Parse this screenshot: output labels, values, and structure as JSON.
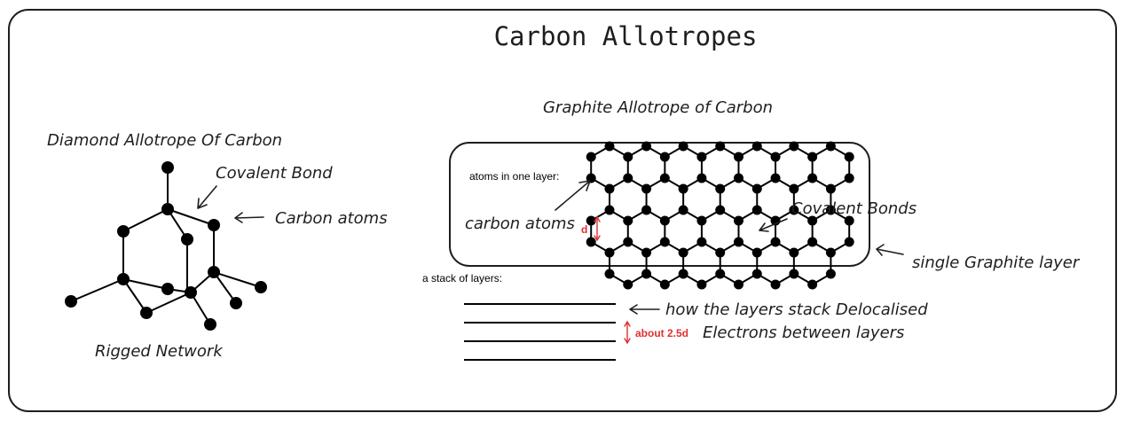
{
  "title": "Carbon Allotropes",
  "diamond": {
    "heading": "Diamond Allotrope Of Carbon",
    "covalent_bond_label": "Covalent Bond",
    "carbon_atoms_label": "Carbon atoms",
    "network_label": "Rigged Network"
  },
  "graphite": {
    "heading": "Graphite Allotrope of Carbon",
    "one_layer_label": "atoms in one layer:",
    "carbon_atoms_label": "carbon atoms",
    "distance_symbol": "d",
    "covalent_bonds_label": "Covalent Bonds",
    "single_layer_label": "single Graphite layer",
    "stack_label": "a stack of layers:",
    "stack_note": "how the layers stack Delocalised",
    "spacing_label": "about 2.5d",
    "electrons_label": "Electrons between layers"
  },
  "colors": {
    "ink": "#1e1e1e",
    "accent": "#e03131"
  }
}
